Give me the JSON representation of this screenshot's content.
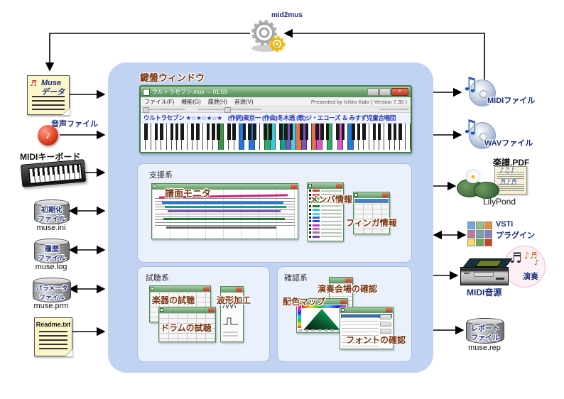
{
  "flow": {
    "mid2mus_label": "mid2mus"
  },
  "main_box": {
    "title": "鍵盤ウィンドウ"
  },
  "keyboard_window": {
    "title": "ウルトラセブン.mus → 01:59",
    "menu": [
      "ファイル(F)",
      "機能(G)",
      "履歴(H)",
      "音源(V)"
    ],
    "presented_by": "Presented by Ichiro Kato ( Version 7.30 )",
    "song_info": "ウルトラセブン ★☆★☆★☆★　(作詞)東京一 (作曲)冬木透 (歌)ジ・エコーズ ＆ みすず児童合唱団",
    "close_glyph": "×",
    "piano": {
      "white_keys": 52,
      "highlights": [
        {
          "i": 15,
          "c": "#2e9e3e"
        },
        {
          "i": 19,
          "c": "#2277dd"
        },
        {
          "i": 21,
          "c": "#2277dd"
        },
        {
          "i": 24,
          "c": "#27ae60"
        },
        {
          "i": 25,
          "c": "#33ccdd"
        },
        {
          "i": 27,
          "c": "#11a08a"
        },
        {
          "i": 28,
          "c": "#7755bb"
        },
        {
          "i": 29,
          "c": "#44d0e0"
        },
        {
          "i": 30,
          "c": "#e87050"
        },
        {
          "i": 31,
          "c": "#7755bb"
        },
        {
          "i": 33,
          "c": "#e87050"
        },
        {
          "i": 34,
          "c": "#dd55cc"
        },
        {
          "i": 36,
          "c": "#27ae60"
        },
        {
          "i": 38,
          "c": "#dd55cc"
        },
        {
          "i": 40,
          "c": "#2277dd"
        }
      ]
    }
  },
  "panels": {
    "support": {
      "label": "支援系",
      "windows": {
        "score": "譜面モニタ",
        "member": "メンバ情報",
        "finger": "フィンガ情報"
      },
      "member_swatches": [
        "#e03030",
        "#e06442",
        "#44cc44",
        "#2a9d6f",
        "#1f7a33",
        "#30c0e0",
        "#59d4f0",
        "#3060e0",
        "#2b4bd0",
        "#b040c0",
        "#e060c0",
        "#8a8a8a",
        "#7a3fbf"
      ]
    },
    "audition": {
      "label": "試聴系",
      "windows": {
        "instrument": "楽器の試聴",
        "waveform": "波形加工",
        "drum": "ドラムの試聴"
      }
    },
    "confirm": {
      "label": "確認系",
      "windows": {
        "venue": "演奏会場の確認",
        "colormap": "配色マップ",
        "font": "フォントの確認"
      }
    }
  },
  "left_nodes": {
    "muse_data": {
      "line1": "Muse",
      "line2": "データ"
    },
    "audio_file": {
      "label": "音声ファイル",
      "note": "♪"
    },
    "midi_keyboard": {
      "label": "MIDIキーボード"
    },
    "ini": {
      "lines": [
        "初期化",
        "ファイル"
      ],
      "file": "muse.ini"
    },
    "log": {
      "lines": [
        "履歴",
        "ファイル"
      ],
      "file": "muse.log"
    },
    "prm": {
      "lines": [
        "パラメータ",
        "ファイル"
      ],
      "file": "muse.prm"
    },
    "readme": {
      "label": "Readme.txt"
    }
  },
  "right_nodes": {
    "midi_file": {
      "label": "MIDIファイル",
      "note": "♫"
    },
    "wav_file": {
      "label": "WAVファイル",
      "note": "♫"
    },
    "lilypond": {
      "pdf_label": "楽譜.PDF",
      "label": "LilyPond",
      "notes": "♪♫♪\n♬♪♬"
    },
    "vsti": {
      "lines": [
        "VSTi",
        "プラグイン"
      ]
    },
    "midi_module": {
      "label": "MIDI音源",
      "performance": "演奏",
      "notes1": "♬",
      "notes2": "♪♬",
      "notes3": "♪"
    },
    "report": {
      "lines": [
        "レポート",
        "ファイル"
      ],
      "file": "muse.rep"
    }
  }
}
